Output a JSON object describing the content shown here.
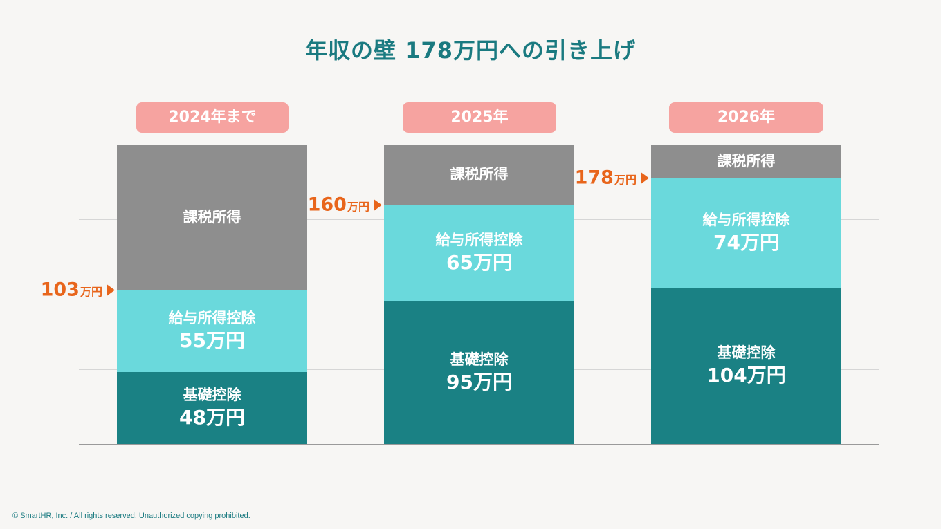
{
  "title": "年収の壁 178万円への引き上げ",
  "footer": "© SmartHR, Inc. / All rights reserved. Unauthorized copying prohibited.",
  "unit": "万円",
  "colors": {
    "title": "#1a7a80",
    "pill": "#f6a3a0",
    "taxable": "#8e8e8e",
    "salary_deduction": "#6ad9dc",
    "basic_deduction": "#1a8184",
    "marker": "#e8651b",
    "gridline": "#d6d6d6",
    "background": "#f7f6f4"
  },
  "chart_data": {
    "type": "bar",
    "stacked": true,
    "title": "年収の壁 178万円への引き上げ",
    "categories": [
      "2024年まで",
      "2025年",
      "2026年"
    ],
    "ylim": [
      0,
      200
    ],
    "grid": true,
    "series": [
      {
        "name": "基礎控除",
        "values": [
          48,
          95,
          104
        ],
        "value_labels": [
          "48万円",
          "95万円",
          "104万円"
        ]
      },
      {
        "name": "給与所得控除",
        "values": [
          55,
          65,
          74
        ],
        "value_labels": [
          "55万円",
          "65万円",
          "74万円"
        ]
      },
      {
        "name": "課税所得",
        "values": [
          97,
          40,
          22
        ],
        "value_labels": [
          "",
          "",
          ""
        ]
      }
    ],
    "thresholds": [
      {
        "value": 103,
        "num": "103",
        "unit": "万円"
      },
      {
        "value": 160,
        "num": "160",
        "unit": "万円"
      },
      {
        "value": 178,
        "num": "178",
        "unit": "万円"
      }
    ]
  }
}
